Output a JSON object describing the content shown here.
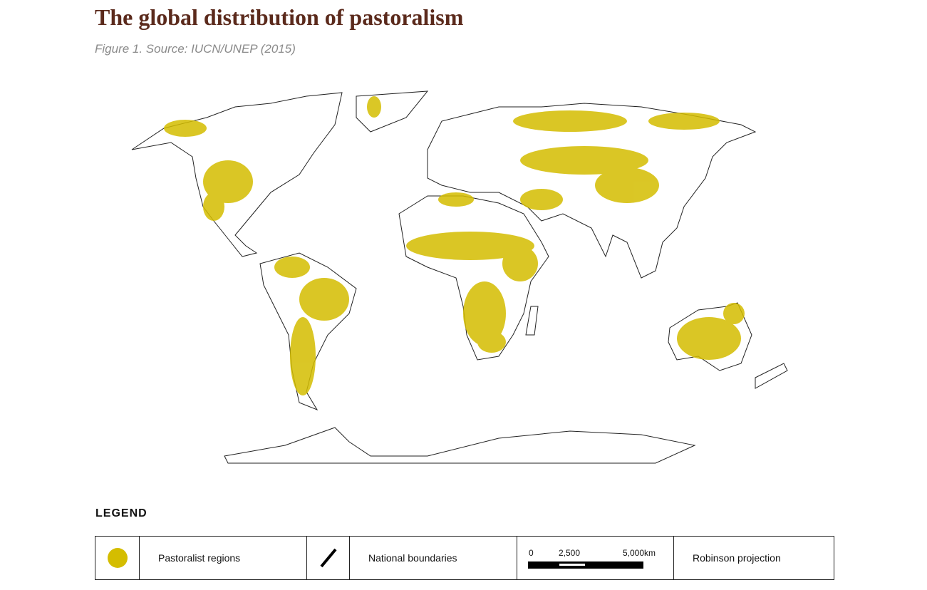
{
  "header": {
    "title": "The global distribution of pastoralism",
    "subtitle": "Figure 1. Source: IUCN/UNEP (2015)"
  },
  "legend": {
    "heading": "LEGEND",
    "items": [
      "Pastoralist regions",
      "National boundaries"
    ],
    "scale_labels": [
      "0",
      "2,500",
      "5,000km"
    ],
    "projection": "Robinson projection"
  }
}
